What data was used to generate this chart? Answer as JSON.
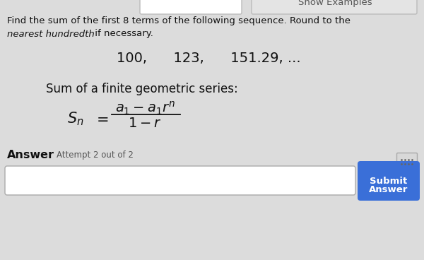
{
  "bg_color": "#dcdcdc",
  "show_examples_text": "Show Examples",
  "show_examples_color": "#555555",
  "main_text_line1": "Find the sum of the first 8 terms of the following sequence. Round to the",
  "main_text_line2_italic": "nearest hundredth",
  "main_text_line2_rest": " if necessary.",
  "sequence_text": "100,      123,      151.29, ...",
  "formula_label": "Sum of a finite geometric series:",
  "answer_bold": "Answer",
  "answer_small": "Attempt 2 out of 2",
  "submit_btn_color": "#3a6fd8",
  "submit_btn_text": "Submit Answer",
  "submit_btn_text_color": "#ffffff",
  "input_box_color": "#ffffff",
  "input_box_border": "#aaaaaa",
  "content_bg": "#e8ecf0",
  "text_color": "#111111",
  "formula_text_color": "#111111",
  "top_box_color": "#ffffff",
  "top_box_border": "#bbbbbb"
}
